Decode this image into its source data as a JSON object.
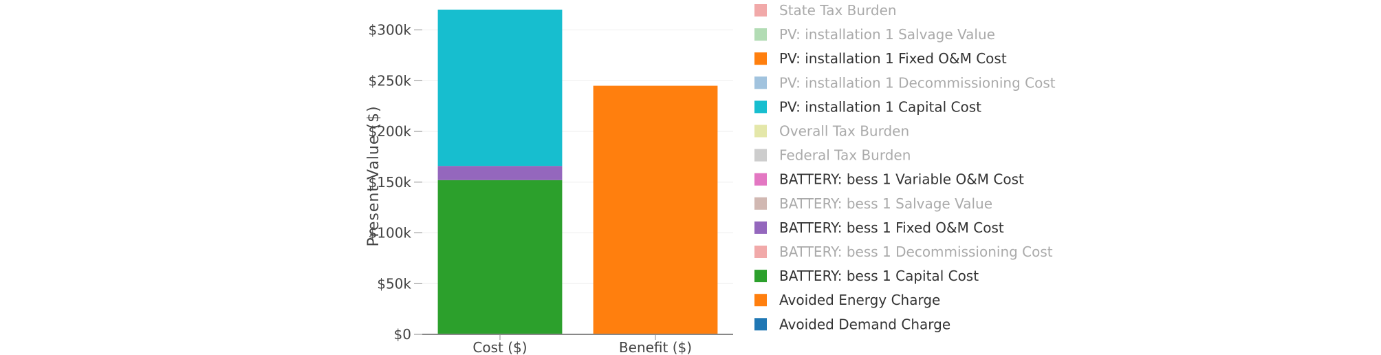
{
  "chart_data": {
    "type": "bar",
    "stacked": true,
    "categories": [
      "Cost ($)",
      "Benefit ($)"
    ],
    "ylabel": "Present Value ($)",
    "ylim": [
      0,
      320000
    ],
    "yticks": [
      {
        "value": 0,
        "label": "$0"
      },
      {
        "value": 50000,
        "label": "$50k"
      },
      {
        "value": 100000,
        "label": "$100k"
      },
      {
        "value": 150000,
        "label": "$150k"
      },
      {
        "value": 200000,
        "label": "$200k"
      },
      {
        "value": 250000,
        "label": "$250k"
      },
      {
        "value": 300000,
        "label": "$300k"
      }
    ],
    "grid": true,
    "legend_position": "right",
    "series": [
      {
        "name": "BATTERY: bess 1 Capital Cost",
        "color": "#2ca02c",
        "values": [
          152000,
          0
        ]
      },
      {
        "name": "BATTERY: bess 1 Fixed O&M Cost",
        "color": "#9467bd",
        "values": [
          14000,
          0
        ]
      },
      {
        "name": "PV: installation 1 Capital Cost",
        "color": "#17becf",
        "values": [
          154000,
          0
        ]
      },
      {
        "name": "Avoided Energy Charge",
        "color": "#ff7f0e",
        "values": [
          0,
          245000
        ]
      }
    ],
    "legend": [
      {
        "name": "State Tax Burden",
        "color": "#ef9a9a",
        "active": false
      },
      {
        "name": "PV: installation 1 Salvage Value",
        "color": "#a5d6a7",
        "active": false
      },
      {
        "name": "PV: installation 1 Fixed O&M Cost",
        "color": "#ff7f0e",
        "active": true
      },
      {
        "name": "PV: installation 1 Decommissioning Cost",
        "color": "#90b9d8",
        "active": false
      },
      {
        "name": "PV: installation 1 Capital Cost",
        "color": "#17becf",
        "active": true
      },
      {
        "name": "Overall Tax Burden",
        "color": "#dfe39a",
        "active": false
      },
      {
        "name": "Federal Tax Burden",
        "color": "#c4c4c4",
        "active": false
      },
      {
        "name": "BATTERY: bess 1 Variable O&M Cost",
        "color": "#e377c2",
        "active": true
      },
      {
        "name": "BATTERY: bess 1 Salvage Value",
        "color": "#c9aca4",
        "active": false
      },
      {
        "name": "BATTERY: bess 1 Fixed O&M Cost",
        "color": "#9467bd",
        "active": true
      },
      {
        "name": "BATTERY: bess 1 Decommissioning Cost",
        "color": "#ef9a9a",
        "active": false
      },
      {
        "name": "BATTERY: bess 1 Capital Cost",
        "color": "#2ca02c",
        "active": true
      },
      {
        "name": "Avoided Energy Charge",
        "color": "#ff7f0e",
        "active": true
      },
      {
        "name": "Avoided Demand Charge",
        "color": "#1f77b4",
        "active": true
      }
    ]
  }
}
